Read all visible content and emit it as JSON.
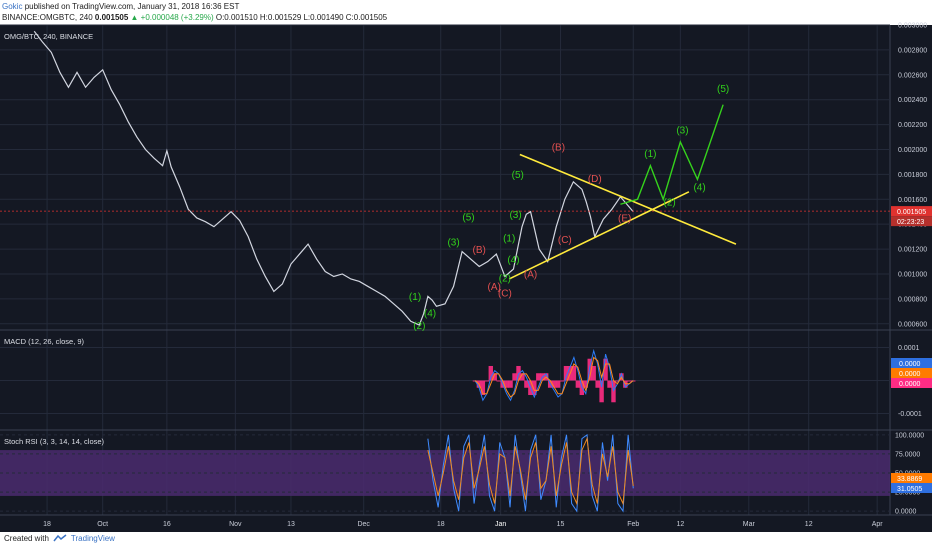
{
  "header": {
    "author": "Gokic",
    "published_text": "published on TradingView.com, January 31, 2018 16:36 EST",
    "symbol_line": "BINANCE:OMGBTC, 240",
    "last_price": "0.001505",
    "change": "▲ +0.000048 (+3.29%)",
    "ohlc": "O:0.001510 H:0.001529 L:0.001490 C:0.001505"
  },
  "footer": {
    "created_with": "Created with",
    "brand": "TradingView"
  },
  "chart_data": [
    {
      "type": "line",
      "title": "OMG/BTC, 240, BINANCE",
      "xlabel": "",
      "ylabel": "",
      "x_tick_labels": [
        "18",
        "Oct",
        "16",
        "Nov",
        "13",
        "Dec",
        "18",
        "Jan",
        "15",
        "Feb",
        "12",
        "Mar",
        "12",
        "Apr"
      ],
      "y_ticks": [
        "0.000600",
        "0.000800",
        "0.001000",
        "0.001200",
        "0.001400",
        "0.001600",
        "0.001800",
        "0.002000",
        "0.002200",
        "0.002400",
        "0.002600",
        "0.002800",
        "0.003000"
      ],
      "ylim": [
        0.00055,
        0.003
      ],
      "x_tick_days": [
        0,
        13,
        28,
        44,
        57,
        74,
        92,
        106,
        120,
        137,
        148,
        164,
        178,
        194
      ],
      "xlim": [
        -11,
        197
      ],
      "x_axis_dates": [
        "Sep 18",
        "Oct 1",
        "Oct 16",
        "Nov 1",
        "Nov 13",
        "Dec 1",
        "Dec 18",
        "Jan 1",
        "Jan 15",
        "Feb 1",
        "Feb 12",
        "Mar 1",
        "Mar 12",
        "Apr 1"
      ],
      "current_price_label": "0.001505",
      "countdown_label": "02:23:23",
      "series": [
        {
          "price_path": [
            [
              -3,
              0.00295
            ],
            [
              -1,
              0.00286
            ],
            [
              1,
              0.00278
            ],
            [
              3,
              0.00262
            ],
            [
              5,
              0.0025
            ],
            [
              7,
              0.00262
            ],
            [
              9,
              0.0025
            ],
            [
              11,
              0.00258
            ],
            [
              13,
              0.00264
            ],
            [
              15,
              0.00248
            ],
            [
              17,
              0.00236
            ],
            [
              19,
              0.00222
            ],
            [
              21,
              0.0021
            ],
            [
              23,
              0.002
            ],
            [
              25,
              0.00193
            ],
            [
              27,
              0.00187
            ],
            [
              28,
              0.00199
            ],
            [
              29,
              0.00186
            ],
            [
              31,
              0.0017
            ],
            [
              33,
              0.00152
            ],
            [
              35,
              0.00145
            ],
            [
              37,
              0.00142
            ],
            [
              39,
              0.00138
            ],
            [
              41,
              0.00144
            ],
            [
              43,
              0.0015
            ],
            [
              45,
              0.00143
            ],
            [
              47,
              0.0013
            ],
            [
              49,
              0.00112
            ],
            [
              51,
              0.00098
            ],
            [
              53,
              0.00086
            ],
            [
              55,
              0.00092
            ],
            [
              57,
              0.00108
            ],
            [
              59,
              0.00116
            ],
            [
              61,
              0.00124
            ],
            [
              63,
              0.00112
            ],
            [
              65,
              0.00102
            ],
            [
              67,
              0.00098
            ],
            [
              69,
              0.001
            ],
            [
              71,
              0.00096
            ],
            [
              73,
              0.00094
            ],
            [
              75,
              0.0009
            ],
            [
              77,
              0.00086
            ],
            [
              79,
              0.00082
            ],
            [
              81,
              0.00076
            ],
            [
              83,
              0.0007
            ],
            [
              85,
              0.00062
            ],
            [
              87,
              0.00059
            ],
            [
              88,
              0.00068
            ],
            [
              89,
              0.00082
            ],
            [
              90,
              0.00079
            ],
            [
              91,
              0.00074
            ],
            [
              93,
              0.00076
            ],
            [
              95,
              0.0009
            ],
            [
              97,
              0.00118
            ],
            [
              99,
              0.00112
            ],
            [
              101,
              0.00106
            ],
            [
              103,
              0.0011
            ],
            [
              105,
              0.00116
            ],
            [
              107,
              0.00098
            ],
            [
              109,
              0.00104
            ],
            [
              111,
              0.00138
            ],
            [
              112,
              0.00148
            ],
            [
              113,
              0.0015
            ],
            [
              115,
              0.0012
            ],
            [
              117,
              0.0011
            ],
            [
              119,
              0.00138
            ],
            [
              121,
              0.0016
            ],
            [
              123,
              0.00174
            ],
            [
              125,
              0.00168
            ],
            [
              126,
              0.00158
            ],
            [
              127,
              0.00146
            ],
            [
              128,
              0.0013
            ],
            [
              130,
              0.00144
            ],
            [
              132,
              0.00152
            ],
            [
              134,
              0.00162
            ],
            [
              136,
              0.00154
            ],
            [
              137,
              0.0015
            ]
          ]
        }
      ],
      "triangle_lines": {
        "upper": {
          "from": [
            110.5,
            0.00196
          ],
          "to": [
            161,
            0.00124
          ]
        },
        "lower": {
          "from": [
            108,
            0.00096
          ],
          "to": [
            150,
            0.00166
          ]
        }
      },
      "projection_path": [
        [
          134,
          0.00156
        ],
        [
          138,
          0.0016
        ],
        [
          141,
          0.00187
        ],
        [
          144,
          0.0016
        ],
        [
          148,
          0.00206
        ],
        [
          152,
          0.00176
        ],
        [
          158,
          0.00236
        ]
      ],
      "wave_labels": {
        "green": [
          {
            "text": "(1)",
            "x": 86,
            "y": 0.00079
          },
          {
            "text": "(2)",
            "x": 87,
            "y": 0.00056
          },
          {
            "text": "(3)",
            "x": 95,
            "y": 0.00123
          },
          {
            "text": "(4)",
            "x": 89.5,
            "y": 0.00066
          },
          {
            "text": "(5)",
            "x": 98.5,
            "y": 0.00143
          },
          {
            "text": "(1)",
            "x": 108,
            "y": 0.00126
          },
          {
            "text": "(2)",
            "x": 107,
            "y": 0.00094
          },
          {
            "text": "(3)",
            "x": 109.5,
            "y": 0.00145
          },
          {
            "text": "(4)",
            "x": 109,
            "y": 0.00109
          },
          {
            "text": "(5)",
            "x": 110,
            "y": 0.00177
          },
          {
            "text": "(1)",
            "x": 141,
            "y": 0.00194
          },
          {
            "text": "(2)",
            "x": 145.5,
            "y": 0.00155
          },
          {
            "text": "(3)",
            "x": 148.5,
            "y": 0.00213
          },
          {
            "text": "(4)",
            "x": 152.5,
            "y": 0.00167
          },
          {
            "text": "(5)",
            "x": 158,
            "y": 0.00246
          }
        ],
        "red": [
          {
            "text": "(A)",
            "x": 104.5,
            "y": 0.00087
          },
          {
            "text": "(B)",
            "x": 101,
            "y": 0.00117
          },
          {
            "text": "(C)",
            "x": 107,
            "y": 0.00082
          },
          {
            "text": "(A)",
            "x": 113,
            "y": 0.00097
          },
          {
            "text": "(B)",
            "x": 119.5,
            "y": 0.00199
          },
          {
            "text": "(C)",
            "x": 121,
            "y": 0.00125
          },
          {
            "text": "(D)",
            "x": 128,
            "y": 0.00174
          },
          {
            "text": "(E)",
            "x": 135,
            "y": 0.00142
          }
        ]
      },
      "annotation_text_note": "",
      "grid": true
    },
    {
      "type": "line",
      "title": "MACD (12, 26, close, 9)",
      "y_ticks": [
        "0.0001",
        "0.0000",
        "-0.0001"
      ],
      "ylim": [
        -0.00015,
        0.00015
      ],
      "value_labels": [
        "0.0000",
        "0.0000",
        "0.0000"
      ],
      "label_colors": [
        "#2e6fe0",
        "#ff7b00",
        "#ff2c84"
      ],
      "series": [
        {
          "name": "MACD",
          "color": "#2c7cf6",
          "values": [
            0,
            -2e-05,
            -6e-05,
            -4e-05,
            1e-05,
            3e-05,
            2e-05,
            -1e-05,
            -4e-05,
            -6e-05,
            -3e-05,
            2e-05,
            3e-05,
            1e-05,
            -2e-05,
            -5e-05,
            -2e-05,
            1e-05,
            2e-05,
            -1e-05,
            -3e-05,
            -5e-05,
            -4e-05,
            1e-05,
            4e-05,
            7e-05,
            3e-05,
            -2e-05,
            -4e-05,
            4e-05,
            9e-05,
            5e-05,
            -2e-05,
            8e-05,
            4e-05,
            -3e-05,
            -1e-05,
            2e-05,
            -2e-05,
            -1e-05,
            0
          ]
        },
        {
          "name": "Signal",
          "color": "#ff8a1e",
          "values": [
            0,
            -1e-05,
            -4e-05,
            -4e-05,
            -1e-05,
            2e-05,
            2e-05,
            0,
            -3e-05,
            -5e-05,
            -4e-05,
            0,
            2e-05,
            2e-05,
            0,
            -3e-05,
            -3e-05,
            0,
            1e-05,
            0,
            -2e-05,
            -4e-05,
            -4e-05,
            -1e-05,
            2e-05,
            5e-05,
            4e-05,
            0,
            -3e-05,
            1e-05,
            7e-05,
            6e-05,
            1e-05,
            5e-05,
            5e-05,
            0,
            -1e-05,
            1e-05,
            -1e-05,
            -1e-05,
            0
          ]
        }
      ]
    },
    {
      "type": "line",
      "title": "Stoch RSI (3, 3, 14, 14, close)",
      "y_ticks": [
        "100.0000",
        "75.0000",
        "50.0000",
        "25.0000",
        "0.0000"
      ],
      "ylim": [
        -5,
        105
      ],
      "value_labels": [
        "33.8869",
        "31.0505"
      ],
      "label_colors": [
        "#ff7b00",
        "#2e6fe0"
      ],
      "band": [
        20,
        80
      ],
      "series": [
        {
          "name": "K",
          "color": "#3f8bff",
          "values": [
            95,
            40,
            5,
            60,
            100,
            30,
            0,
            85,
            100,
            10,
            60,
            100,
            20,
            0,
            90,
            70,
            5,
            100,
            50,
            0,
            80,
            100,
            15,
            40,
            100,
            5,
            70,
            100,
            10,
            0,
            95,
            100,
            20,
            0,
            90,
            40,
            100,
            10,
            0,
            100,
            30
          ]
        },
        {
          "name": "D",
          "color": "#f28a1e",
          "values": [
            80,
            50,
            20,
            50,
            85,
            40,
            15,
            70,
            90,
            30,
            55,
            85,
            35,
            10,
            75,
            70,
            20,
            85,
            55,
            15,
            70,
            90,
            30,
            40,
            85,
            20,
            60,
            90,
            25,
            10,
            80,
            95,
            35,
            10,
            75,
            45,
            85,
            25,
            10,
            80,
            33
          ]
        }
      ]
    }
  ],
  "colors": {
    "background": "#141823",
    "grid": "#242a3a",
    "candle_line": "#d2d6e0",
    "red_line": "#cf3b3b",
    "triangle": "#ffea3c",
    "projection": "#35d31c",
    "green_label": "#32d11c",
    "red_label": "#e35050",
    "axis_text": "#c9cdd8",
    "price_tag": "#e0322f",
    "stoch_band": "#4a2b6e"
  }
}
